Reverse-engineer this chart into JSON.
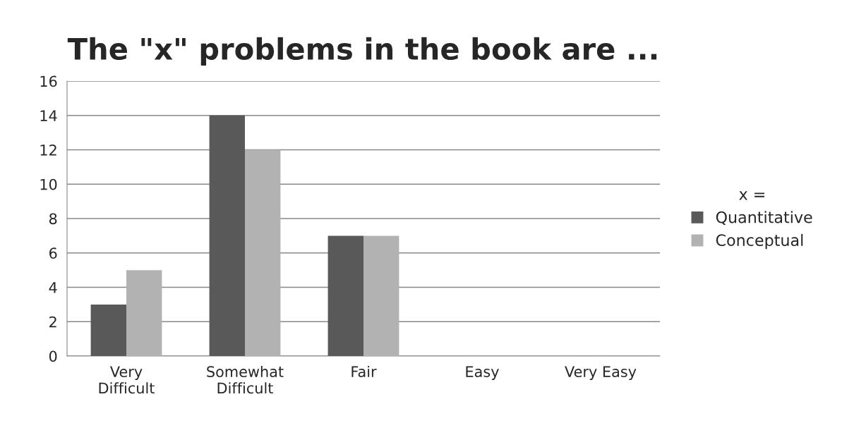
{
  "chart_data": {
    "type": "bar",
    "title": "The \"x\" problems in the book are ...",
    "categories": [
      "Very\nDifficult",
      "Somewhat\nDifficult",
      "Fair",
      "Easy",
      "Very Easy"
    ],
    "series": [
      {
        "name": "Quantitative",
        "color": "#595959",
        "values": [
          3,
          14,
          7,
          0,
          0
        ]
      },
      {
        "name": "Conceptual",
        "color": "#b2b2b2",
        "values": [
          5,
          12,
          7,
          0,
          0
        ]
      }
    ],
    "legend_title": "x =",
    "legend": "right",
    "ylim": [
      0,
      16
    ],
    "yticks": [
      0,
      2,
      4,
      6,
      8,
      10,
      12,
      14,
      16
    ],
    "grid": "y"
  }
}
